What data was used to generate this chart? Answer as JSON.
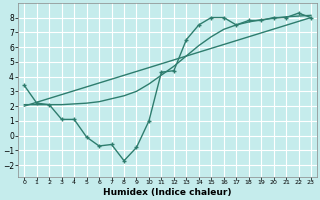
{
  "background_color": "#c5ecec",
  "grid_color": "#ffffff",
  "line_color": "#2e7d6e",
  "xlabel": "Humidex (Indice chaleur)",
  "xlim": [
    -0.5,
    23.5
  ],
  "ylim": [
    -2.8,
    9.0
  ],
  "xticks": [
    0,
    1,
    2,
    3,
    4,
    5,
    6,
    7,
    8,
    9,
    10,
    11,
    12,
    13,
    14,
    15,
    16,
    17,
    18,
    19,
    20,
    21,
    22,
    23
  ],
  "yticks": [
    -2,
    -1,
    0,
    1,
    2,
    3,
    4,
    5,
    6,
    7,
    8
  ],
  "line1_x": [
    0,
    1,
    2,
    3,
    4,
    5,
    6,
    7,
    8,
    9,
    10,
    11,
    12,
    13,
    14,
    15,
    16,
    17,
    18,
    19,
    20,
    21,
    22,
    23
  ],
  "line1_y": [
    3.4,
    2.2,
    2.1,
    1.1,
    1.1,
    -0.1,
    -0.7,
    -0.6,
    -1.7,
    -0.8,
    1.0,
    4.3,
    4.4,
    6.5,
    7.5,
    8.0,
    8.0,
    7.5,
    7.8,
    7.8,
    8.0,
    8.0,
    8.3,
    8.0
  ],
  "line2_x": [
    0,
    1,
    2,
    3,
    4,
    5,
    6,
    7,
    8,
    9,
    10,
    11,
    12,
    13,
    14,
    15,
    16,
    17,
    18,
    19,
    20,
    21,
    22,
    23
  ],
  "line2_y": [
    2.1,
    2.1,
    2.1,
    2.1,
    2.15,
    2.2,
    2.3,
    2.5,
    2.7,
    3.0,
    3.5,
    4.1,
    4.7,
    5.4,
    6.1,
    6.7,
    7.2,
    7.5,
    7.7,
    7.85,
    7.95,
    8.05,
    8.1,
    8.15
  ],
  "line3_x": [
    0,
    23
  ],
  "line3_y": [
    2.0,
    8.0
  ]
}
